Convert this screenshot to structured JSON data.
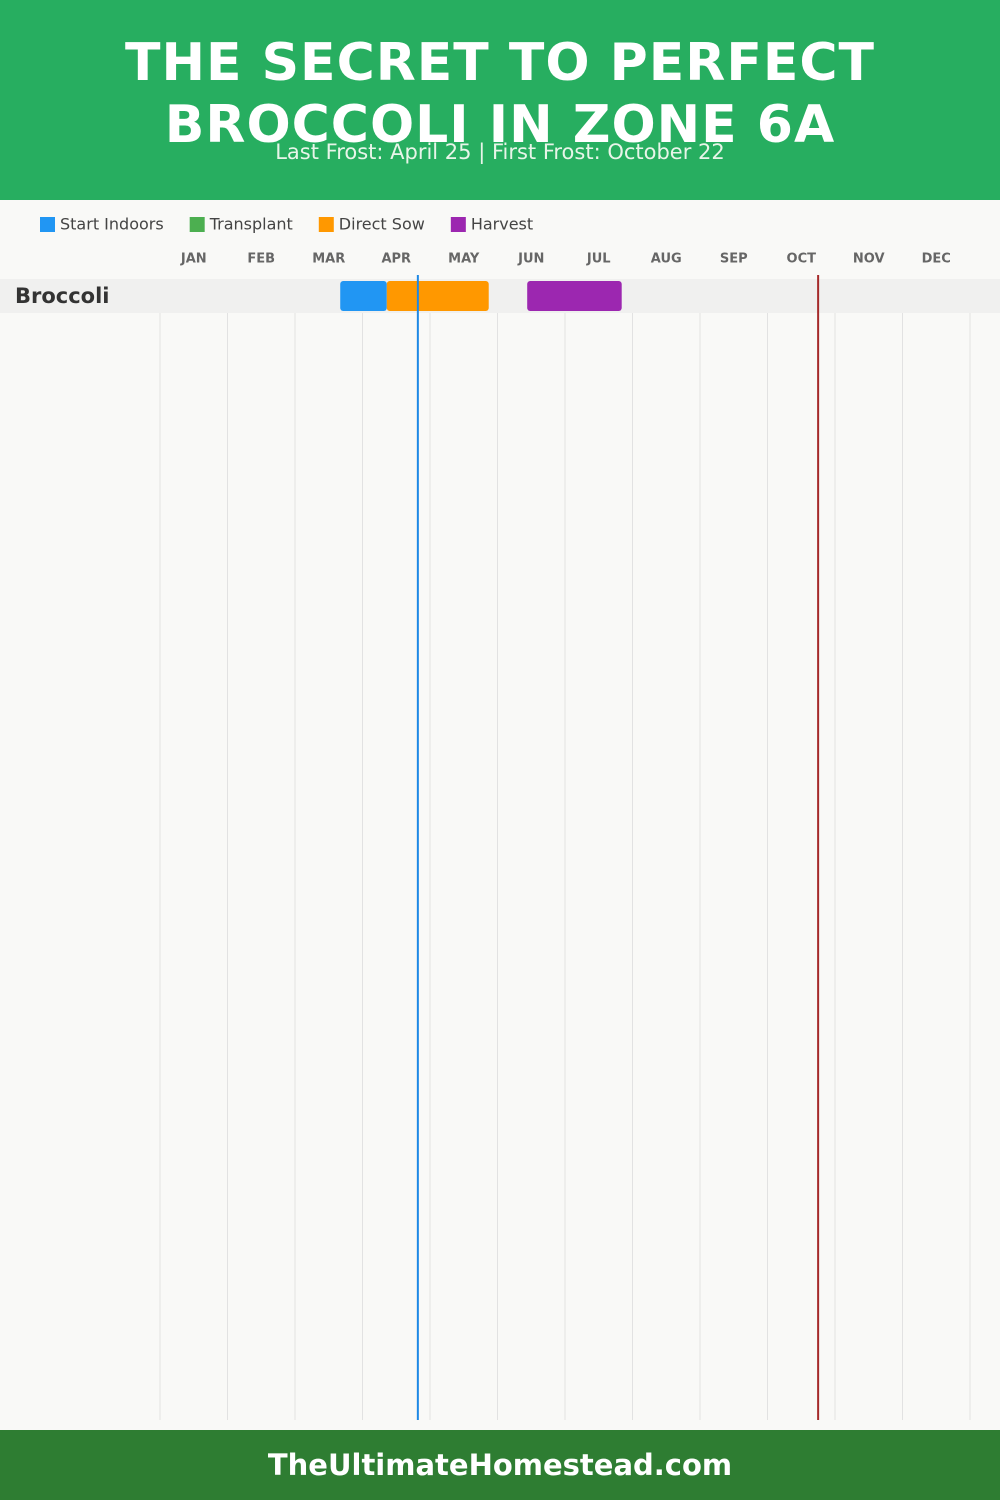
{
  "chart_data": {
    "type": "gantt",
    "title": "THE SECRET TO PERFECT BROCCOLI IN ZONE 6A",
    "subtitle": "Last Frost: April 25 | First Frost: October 22",
    "categories": [
      "JAN",
      "FEB",
      "MAR",
      "APR",
      "MAY",
      "JUN",
      "JUL",
      "AUG",
      "SEP",
      "OCT",
      "NOV",
      "DEC"
    ],
    "xlim": [
      0,
      12
    ],
    "xticks": [
      0,
      1,
      2,
      3,
      4,
      5,
      6,
      7,
      8,
      9,
      10,
      11,
      12
    ],
    "grid": true,
    "rows": [
      "Broccoli"
    ],
    "series": [
      {
        "name": "Start Indoors",
        "color": "#2196f3",
        "start": [
          2.67
        ],
        "end": [
          3.36
        ]
      },
      {
        "name": "Transplant",
        "color": "#4caf50",
        "start": [
          null
        ],
        "end": [
          null
        ]
      },
      {
        "name": "Direct Sow",
        "color": "#ff9800",
        "start": [
          3.36
        ],
        "end": [
          4.87
        ]
      },
      {
        "name": "Harvest",
        "color": "#9c27b0",
        "start": [
          5.44
        ],
        "end": [
          6.84
        ]
      }
    ],
    "markers": [
      {
        "value": 3.82,
        "color": "#1e88e5"
      },
      {
        "value": 9.75,
        "color": "#a52a2a"
      }
    ]
  },
  "footer": "TheUltimateHomestead.com"
}
